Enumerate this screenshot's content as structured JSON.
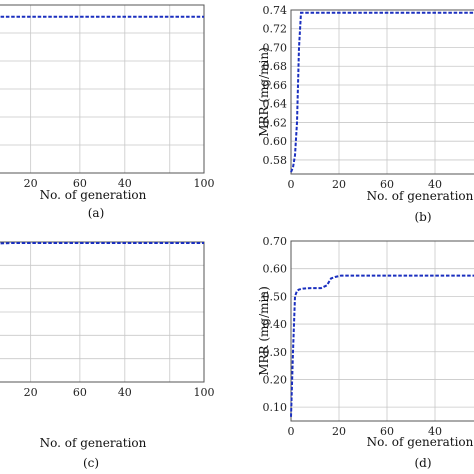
{
  "chart_data": [
    {
      "id": "a",
      "caption": "(a)",
      "type": "line",
      "xlabel": "No. of generation",
      "ylabel": "",
      "xticks": [
        "20",
        "60",
        "40",
        "100"
      ],
      "yticks": [],
      "xlim": [
        0,
        100
      ],
      "ylim": [
        0,
        1
      ],
      "series": [
        {
          "x": [
            0,
            100
          ],
          "y": [
            0.93,
            0.93
          ]
        }
      ]
    },
    {
      "id": "b",
      "caption": "(b)",
      "type": "line",
      "xlabel": "No. of generation",
      "ylabel": "MRR (mg/min)",
      "xticks": [
        "0",
        "20",
        "60",
        "40"
      ],
      "yticks": [
        "0.58",
        "0.60",
        "0.62",
        "0.64",
        "0.66",
        "0.68",
        "0.70",
        "0.72",
        "0.74"
      ],
      "xlim": [
        0,
        100
      ],
      "ylim": [
        0.565,
        0.74
      ],
      "series": [
        {
          "x": [
            0,
            1,
            2,
            3,
            4,
            5,
            100
          ],
          "y": [
            0.567,
            0.572,
            0.585,
            0.62,
            0.7,
            0.737,
            0.737
          ]
        }
      ]
    },
    {
      "id": "c",
      "caption": "(c)",
      "type": "line",
      "xlabel": "No. of generation",
      "ylabel": "",
      "xticks": [
        "20",
        "60",
        "40",
        "100"
      ],
      "yticks": [],
      "xlim": [
        0,
        100
      ],
      "ylim": [
        0,
        1
      ],
      "series": [
        {
          "x": [
            0,
            5,
            10,
            100
          ],
          "y": [
            0.985,
            0.99,
            0.993,
            0.993
          ]
        }
      ]
    },
    {
      "id": "d",
      "caption": "(d)",
      "type": "line",
      "xlabel": "No. of generation",
      "ylabel": "MRR (mg/min)",
      "xticks": [
        "0",
        "20",
        "60",
        "40"
      ],
      "yticks": [
        "0.10",
        "0.20",
        "0.30",
        "0.40",
        "0.50",
        "0.60",
        "0.70"
      ],
      "xlim": [
        0,
        100
      ],
      "ylim": [
        0.05,
        0.7
      ],
      "series": [
        {
          "x": [
            0,
            1,
            2,
            3,
            4,
            6,
            10,
            15,
            18,
            20,
            22,
            25,
            100
          ],
          "y": [
            0.065,
            0.3,
            0.5,
            0.52,
            0.525,
            0.528,
            0.53,
            0.53,
            0.54,
            0.565,
            0.57,
            0.575,
            0.575
          ]
        }
      ]
    }
  ]
}
